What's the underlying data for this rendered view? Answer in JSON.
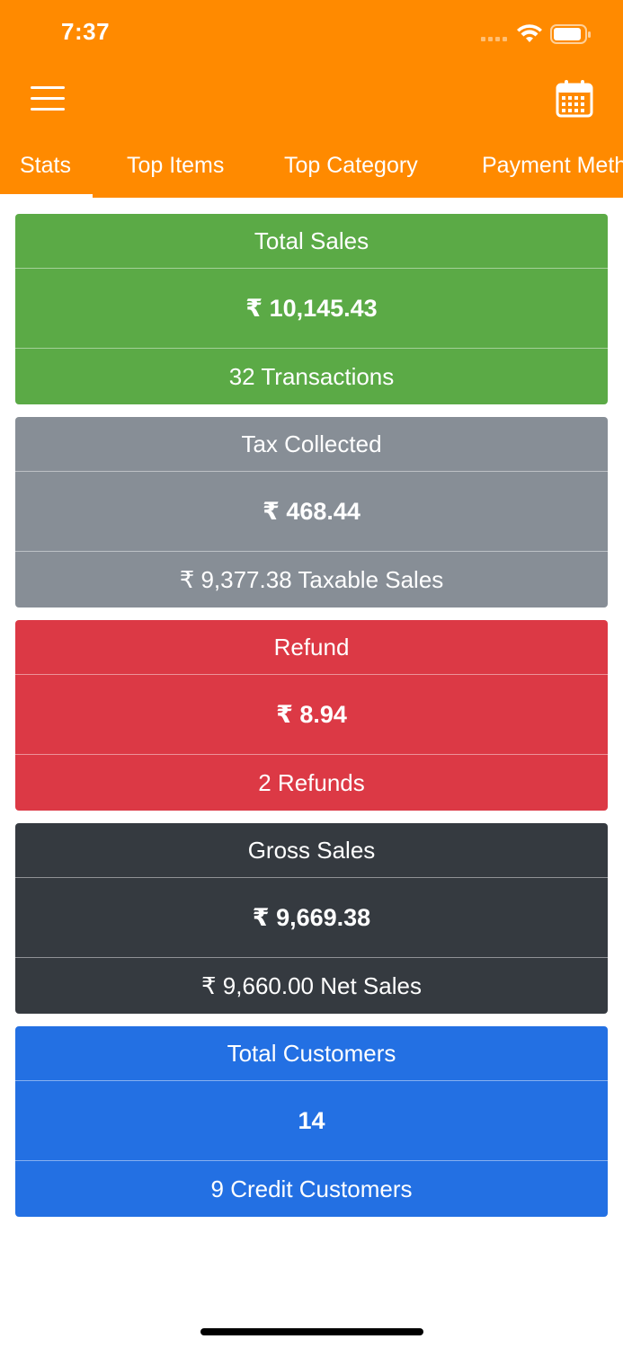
{
  "status_bar": {
    "time": "7:37",
    "wifi_icon": "wifi-icon",
    "battery_icon": "battery-icon"
  },
  "header": {
    "menu_icon": "hamburger-menu-icon",
    "calendar_icon": "calendar-icon",
    "background_color": "#FF8A00"
  },
  "tabs": [
    {
      "label": "Stats",
      "active": true
    },
    {
      "label": "Top Items",
      "active": false
    },
    {
      "label": "Top Category",
      "active": false
    },
    {
      "label": "Payment Methods",
      "active": false
    }
  ],
  "cards": [
    {
      "title": "Total Sales",
      "value": "₹ 10,145.43",
      "subtitle": "32 Transactions",
      "color": "#5BAA46"
    },
    {
      "title": "Tax Collected",
      "value": "₹ 468.44",
      "subtitle": "₹ 9,377.38 Taxable Sales",
      "color": "#878E96"
    },
    {
      "title": "Refund",
      "value": "₹ 8.94",
      "subtitle": "2 Refunds",
      "color": "#DC3945"
    },
    {
      "title": "Gross Sales",
      "value": "₹ 9,669.38",
      "subtitle": "₹ 9,660.00 Net Sales",
      "color": "#353A40"
    },
    {
      "title": "Total Customers",
      "value": "14",
      "subtitle": "9 Credit Customers",
      "color": "#2370E3"
    }
  ]
}
